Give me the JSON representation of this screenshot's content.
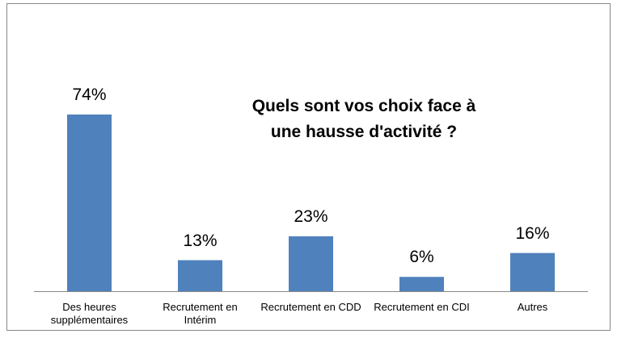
{
  "chart_data": {
    "type": "bar",
    "title": "Quels sont vos choix face à une hausse d'activité ?",
    "categories": [
      "Des heures supplémentaires",
      "Recrutement en Intérim",
      "Recrutement en CDD",
      "Recrutement en CDI",
      "Autres"
    ],
    "values": [
      74,
      13,
      23,
      6,
      16
    ],
    "value_labels": [
      "74%",
      "13%",
      "23%",
      "6%",
      "16%"
    ],
    "color": "#4f81bd"
  }
}
